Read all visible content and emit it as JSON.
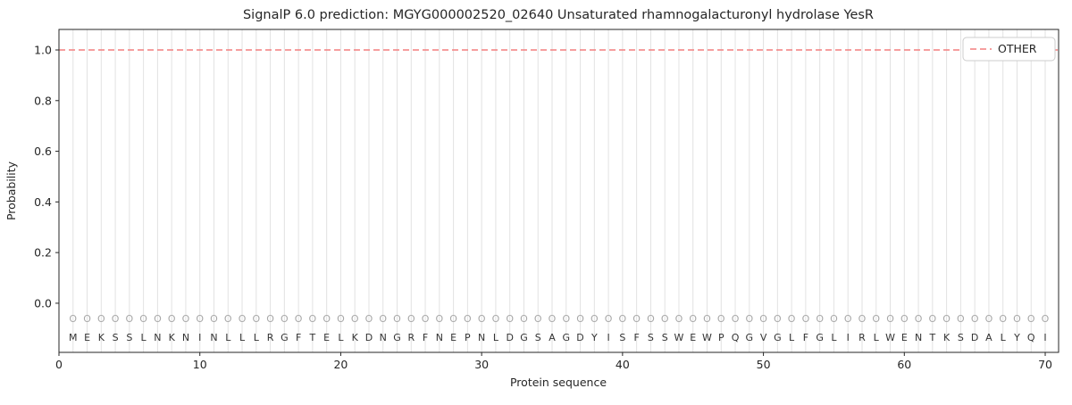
{
  "chart_data": {
    "type": "line",
    "title": "SignalP 6.0 prediction: MGYG000002520_02640 Unsaturated rhamnogalacturonyl hydrolase YesR",
    "xlabel": "Protein sequence",
    "ylabel": "Probability",
    "xticks": [
      0,
      10,
      20,
      30,
      40,
      50,
      60,
      70
    ],
    "yticks": [
      0.0,
      0.2,
      0.4,
      0.6,
      0.8,
      1.0
    ],
    "xlim": [
      0,
      70.95
    ],
    "ylim": [
      -0.194,
      1.081
    ],
    "grid": "light vertical gridline at every residue position",
    "sequence": "MEKSSLNKNINLLLRGFTELKDNGRFNEPNLDGSAGDYISFSSWEWPQGVGLFGLIRLWENTKSDALYQI",
    "predicted_region_labels": "OOOOOOOOOOOOOOOOOOOOOOOOOOOOOOOOOOOOOOOOOOOOOOOOOOOOOOOOOOOOOOOOOOOOOO",
    "series": [
      {
        "name": "OTHER",
        "style": "dashed",
        "color": "#f37f7f",
        "x": [
          0,
          70.95
        ],
        "y": [
          1.0,
          1.0
        ]
      }
    ],
    "legend": {
      "position": "upper right",
      "entries": [
        {
          "label": "OTHER",
          "color": "#f37f7f",
          "line_style": "dashed"
        }
      ]
    }
  }
}
